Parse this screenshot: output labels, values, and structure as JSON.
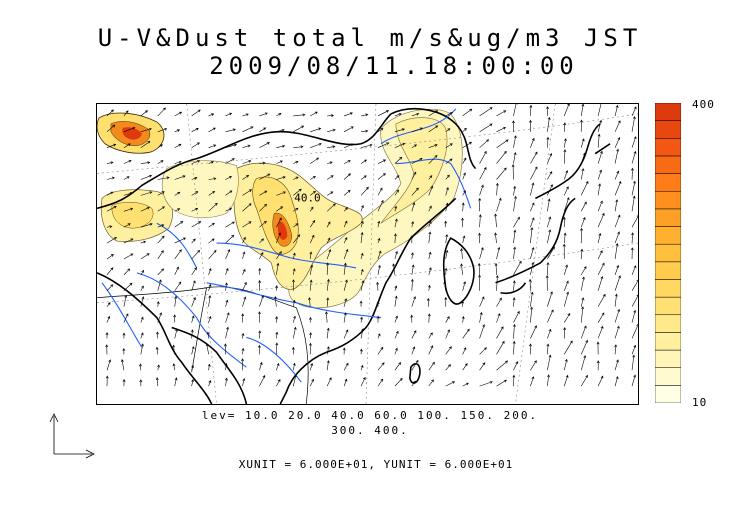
{
  "title_line1": "U-V&Dust total m/s&ug/m3 JST",
  "title_line2": "2009/08/11.18:00:00",
  "contour_label": "40.0",
  "colorbar": {
    "max_label": "400",
    "min_label": "10",
    "colors": [
      "#ffffe6",
      "#fffad0",
      "#fff5b8",
      "#fff0a0",
      "#ffe98a",
      "#ffe074",
      "#ffd65f",
      "#ffcb4c",
      "#ffbf3d",
      "#ffb02f",
      "#ffa026",
      "#ff8f1e",
      "#ff7d18",
      "#f96a14",
      "#f25812",
      "#e84810",
      "#dd3a0e"
    ]
  },
  "levels_line1": "lev= 10.0 20.0 40.0 60.0 100. 150. 200.",
  "levels_line2": "300. 400.",
  "unit_text": "XUNIT = 6.000E+01, YUNIT = 6.000E+01",
  "colors": {
    "coast": "#000000",
    "river": "#1f5fff",
    "dust_light": "#fff7c0",
    "dust_mid": "#ffe071",
    "dust_high": "#f28a1e",
    "dust_peak": "#e0390e"
  }
}
